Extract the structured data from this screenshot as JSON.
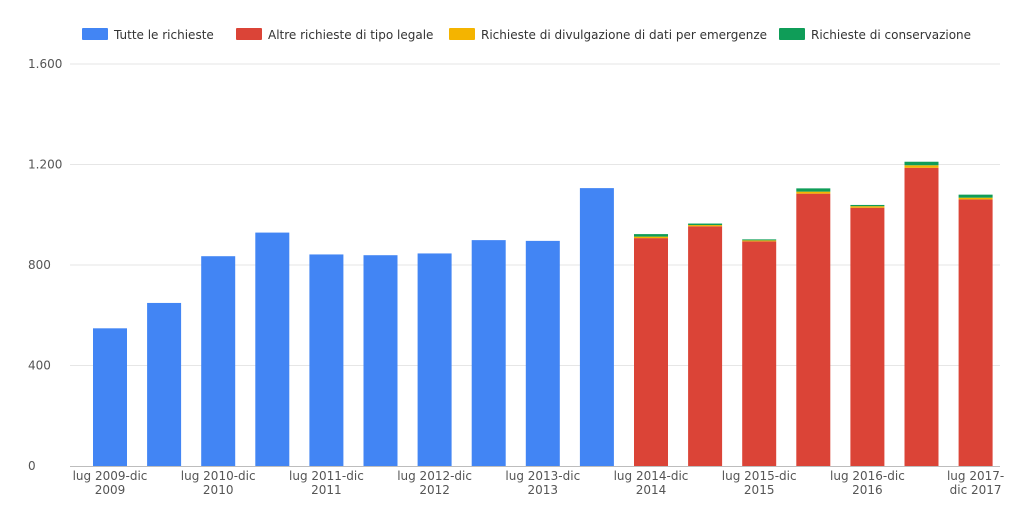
{
  "chart_data": {
    "type": "bar",
    "stacked": true,
    "colors": {
      "all": "#4285f4",
      "legal": "#db4437",
      "emergency": "#f4b400",
      "preservation": "#0f9d58"
    },
    "legend": [
      {
        "key": "all",
        "label": "Tutte le richieste",
        "color": "#4285f4"
      },
      {
        "key": "legal",
        "label": "Altre richieste di tipo legale",
        "color": "#db4437"
      },
      {
        "key": "emergency",
        "label": "Richieste di divulgazione di dati per emergenze",
        "color": "#f4b400"
      },
      {
        "key": "preservation",
        "label": "Richieste di conservazione",
        "color": "#0f9d58"
      }
    ],
    "yticks": [
      {
        "value": 0,
        "label": "0"
      },
      {
        "value": 400,
        "label": "400"
      },
      {
        "value": 800,
        "label": "800"
      },
      {
        "value": 1200,
        "label": "1.200"
      },
      {
        "value": 1600,
        "label": "1.600"
      }
    ],
    "ylim": [
      0,
      1600
    ],
    "categories": [
      {
        "lines": [
          "lug 2009-dic",
          "2009"
        ]
      },
      {
        "lines": []
      },
      {
        "lines": [
          "lug 2010-dic",
          "2010"
        ]
      },
      {
        "lines": []
      },
      {
        "lines": [
          "lug 2011-dic",
          "2011"
        ]
      },
      {
        "lines": []
      },
      {
        "lines": [
          "lug 2012-dic",
          "2012"
        ]
      },
      {
        "lines": []
      },
      {
        "lines": [
          "lug 2013-dic",
          "2013"
        ]
      },
      {
        "lines": []
      },
      {
        "lines": [
          "lug 2014-dic",
          "2014"
        ]
      },
      {
        "lines": []
      },
      {
        "lines": [
          "lug 2015-dic",
          "2015"
        ]
      },
      {
        "lines": []
      },
      {
        "lines": [
          "lug 2016-dic",
          "2016"
        ]
      },
      {
        "lines": []
      },
      {
        "lines": [
          "lug 2017-",
          "dic 2017"
        ]
      }
    ],
    "series": [
      {
        "key": "all",
        "name": "Tutte le richieste",
        "values": [
          548,
          649,
          835,
          929,
          842,
          839,
          846,
          899,
          896,
          1106,
          0,
          0,
          0,
          0,
          0,
          0,
          0
        ]
      },
      {
        "key": "legal",
        "name": "Altre richieste di tipo legale",
        "values": [
          0,
          0,
          0,
          0,
          0,
          0,
          0,
          0,
          0,
          0,
          907,
          954,
          894,
          1084,
          1028,
          1187,
          1061
        ]
      },
      {
        "key": "emergency",
        "name": "Richieste di divulgazione di dati per emergenze",
        "values": [
          0,
          0,
          0,
          0,
          0,
          0,
          0,
          0,
          0,
          0,
          6,
          5,
          4,
          8,
          6,
          10,
          7
        ]
      },
      {
        "key": "preservation",
        "name": "Richieste di conservazione",
        "values": [
          0,
          0,
          0,
          0,
          0,
          0,
          0,
          0,
          0,
          0,
          10,
          6,
          4,
          13,
          5,
          14,
          12
        ]
      }
    ]
  }
}
